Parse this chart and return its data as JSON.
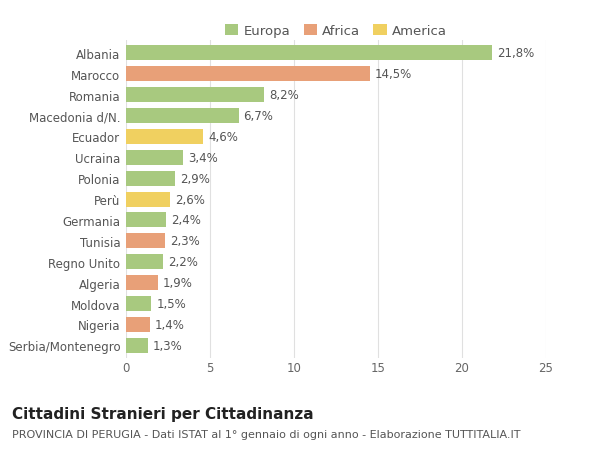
{
  "categories": [
    "Albania",
    "Marocco",
    "Romania",
    "Macedonia d/N.",
    "Ecuador",
    "Ucraina",
    "Polonia",
    "Perù",
    "Germania",
    "Tunisia",
    "Regno Unito",
    "Algeria",
    "Moldova",
    "Nigeria",
    "Serbia/Montenegro"
  ],
  "values": [
    21.8,
    14.5,
    8.2,
    6.7,
    4.6,
    3.4,
    2.9,
    2.6,
    2.4,
    2.3,
    2.2,
    1.9,
    1.5,
    1.4,
    1.3
  ],
  "labels": [
    "21,8%",
    "14,5%",
    "8,2%",
    "6,7%",
    "4,6%",
    "3,4%",
    "2,9%",
    "2,6%",
    "2,4%",
    "2,3%",
    "2,2%",
    "1,9%",
    "1,5%",
    "1,4%",
    "1,3%"
  ],
  "continents": [
    "Europa",
    "Africa",
    "Europa",
    "Europa",
    "America",
    "Europa",
    "Europa",
    "America",
    "Europa",
    "Africa",
    "Europa",
    "Africa",
    "Europa",
    "Africa",
    "Europa"
  ],
  "colors": {
    "Europa": "#a8c97f",
    "Africa": "#e8a078",
    "America": "#f0d060"
  },
  "xlim": [
    0,
    25
  ],
  "xticks": [
    0,
    5,
    10,
    15,
    20,
    25
  ],
  "title": "Cittadini Stranieri per Cittadinanza",
  "subtitle": "PROVINCIA DI PERUGIA - Dati ISTAT al 1° gennaio di ogni anno - Elaborazione TUTTITALIA.IT",
  "background_color": "#ffffff",
  "grid_color": "#e0e0e0",
  "bar_height": 0.72,
  "label_fontsize": 8.5,
  "tick_fontsize": 8.5,
  "title_fontsize": 11,
  "subtitle_fontsize": 8
}
